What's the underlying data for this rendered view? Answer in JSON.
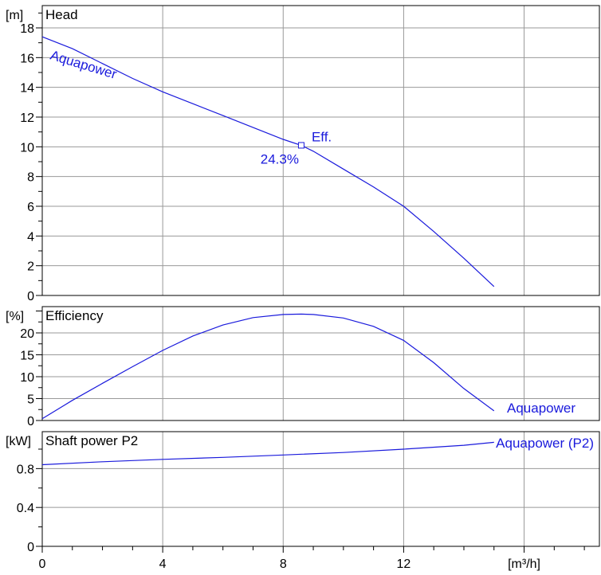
{
  "colors": {
    "series": "#1a1adc",
    "grid": "#999999",
    "axis": "#000000",
    "background": "#ffffff"
  },
  "x_axis": {
    "unit": "[m³/h]",
    "ticks": [
      0,
      4,
      8,
      12
    ],
    "range": [
      0,
      18.5
    ]
  },
  "chart_data": [
    {
      "type": "line",
      "title": "Head",
      "ylabel": "[m]",
      "yticks": [
        0,
        2,
        4,
        6,
        8,
        10,
        12,
        14,
        16,
        18
      ],
      "ylim": [
        0,
        19.5
      ],
      "xlim": [
        0,
        18.5
      ],
      "grid": true,
      "series": [
        {
          "name": "Aquapower",
          "x": [
            0,
            1,
            2,
            3,
            4,
            5,
            6,
            7,
            8,
            8.6,
            9,
            10,
            11,
            12,
            13,
            14,
            15
          ],
          "y": [
            17.4,
            16.6,
            15.6,
            14.6,
            13.7,
            12.9,
            12.1,
            11.3,
            10.5,
            10.1,
            9.7,
            8.5,
            7.3,
            6.0,
            4.3,
            2.5,
            0.6
          ]
        }
      ],
      "annotations": [
        {
          "text": "Eff.",
          "x": 8.6,
          "y": 10.1
        },
        {
          "text": "24.3%",
          "x": 8.6,
          "y": 10.1
        }
      ]
    },
    {
      "type": "line",
      "title": "Efficiency",
      "ylabel": "[%]",
      "yticks": [
        0,
        5,
        10,
        15,
        20
      ],
      "ylim": [
        0,
        26
      ],
      "xlim": [
        0,
        18.5
      ],
      "grid": true,
      "series": [
        {
          "name": "Aquapower",
          "x": [
            0,
            1,
            2,
            3,
            4,
            5,
            6,
            7,
            8,
            8.6,
            9,
            10,
            11,
            12,
            13,
            14,
            15
          ],
          "y": [
            0.4,
            4.6,
            8.5,
            12.3,
            16.0,
            19.3,
            21.8,
            23.5,
            24.2,
            24.3,
            24.2,
            23.4,
            21.5,
            18.3,
            13.2,
            7.3,
            2.2
          ]
        }
      ]
    },
    {
      "type": "line",
      "title": "Shaft power P2",
      "ylabel": "[kW]",
      "yticks": [
        0,
        0.4,
        0.8
      ],
      "ytick_labels": [
        "0",
        "0.4",
        "0.8"
      ],
      "ylim": [
        0,
        1.18
      ],
      "xlim": [
        0,
        18.5
      ],
      "grid": true,
      "series": [
        {
          "name": "Aquapower (P2)",
          "x": [
            0,
            2,
            4,
            6,
            8,
            10,
            12,
            14,
            15
          ],
          "y": [
            0.84,
            0.87,
            0.895,
            0.915,
            0.94,
            0.965,
            1.0,
            1.04,
            1.07
          ]
        }
      ]
    }
  ]
}
